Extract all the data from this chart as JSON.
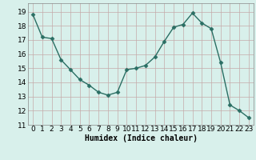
{
  "x": [
    0,
    1,
    2,
    3,
    4,
    5,
    6,
    7,
    8,
    9,
    10,
    11,
    12,
    13,
    14,
    15,
    16,
    17,
    18,
    19,
    20,
    21,
    22,
    23
  ],
  "y": [
    18.8,
    17.2,
    17.1,
    15.6,
    14.9,
    14.2,
    13.8,
    13.3,
    13.1,
    13.3,
    14.9,
    15.0,
    15.2,
    15.8,
    16.9,
    17.9,
    18.1,
    18.9,
    18.2,
    17.8,
    15.4,
    12.4,
    12.0,
    11.5
  ],
  "line_color": "#2a6e63",
  "marker": "D",
  "markersize": 2.5,
  "linewidth": 1.0,
  "bg_color": "#d8f0eb",
  "grid_color": "#c4aaaa",
  "xlabel": "Humidex (Indice chaleur)",
  "xlabel_fontsize": 7,
  "tick_fontsize": 6.5,
  "xlim": [
    -0.5,
    23.5
  ],
  "ylim": [
    11,
    19.6
  ],
  "yticks": [
    11,
    12,
    13,
    14,
    15,
    16,
    17,
    18,
    19
  ],
  "xticks": [
    0,
    1,
    2,
    3,
    4,
    5,
    6,
    7,
    8,
    9,
    10,
    11,
    12,
    13,
    14,
    15,
    16,
    17,
    18,
    19,
    20,
    21,
    22,
    23
  ]
}
